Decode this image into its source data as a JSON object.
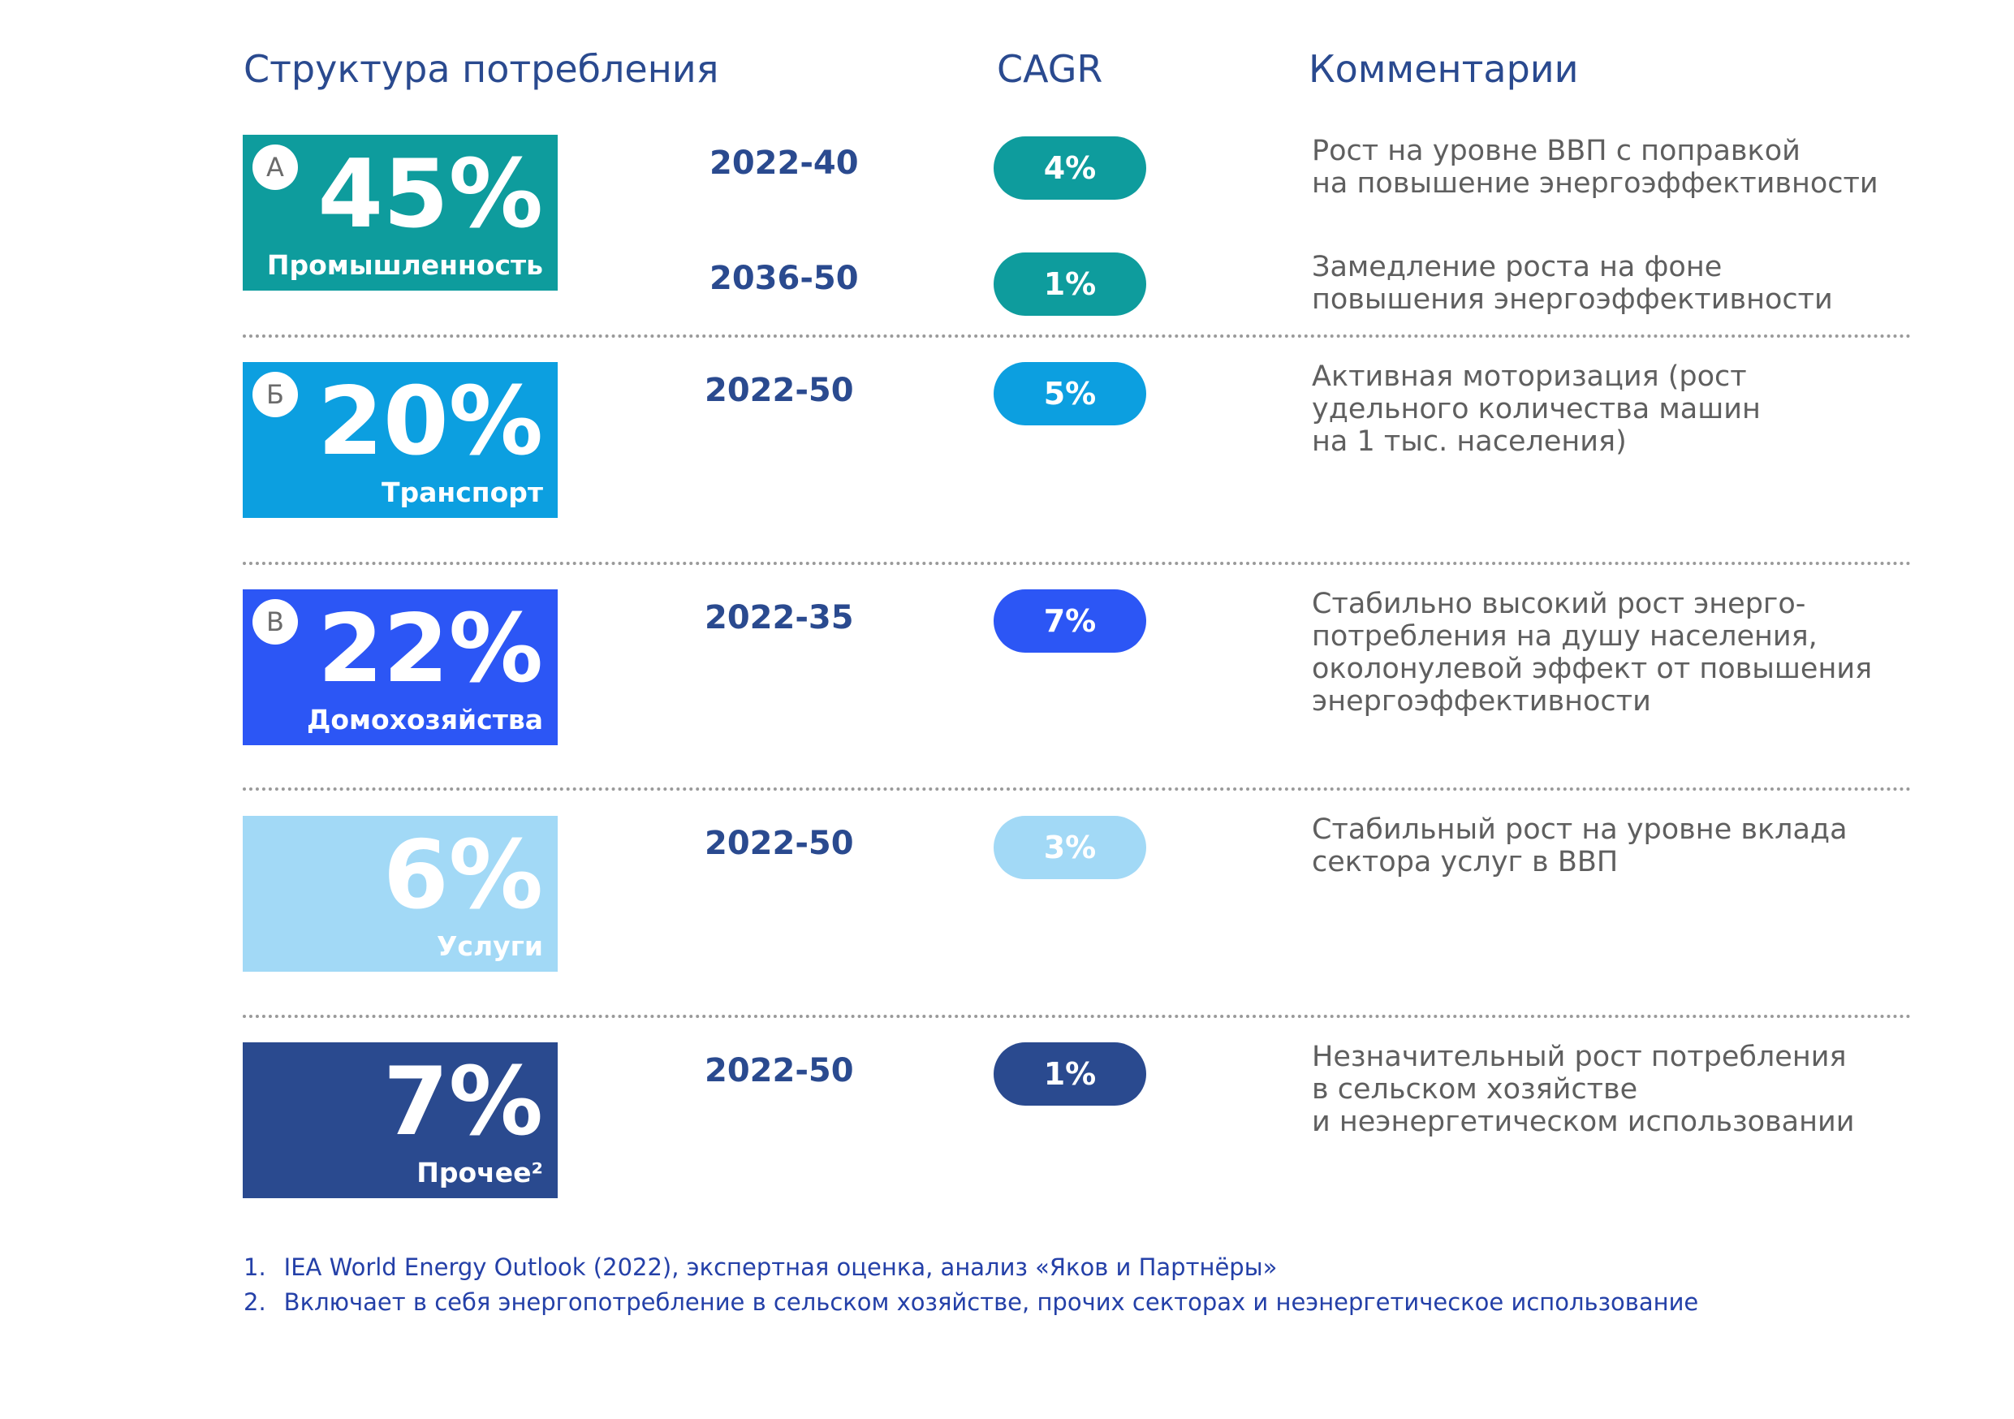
{
  "headers": {
    "structure": "Структура потребления",
    "cagr": "CAGR",
    "comments": "Комментарии"
  },
  "sectors": [
    {
      "badge": "А",
      "percent": "45%",
      "label": "Промышленность",
      "color": "#0e9c9d",
      "rows": [
        {
          "period": "2022-40",
          "cagr": "4%",
          "comment": "Рост на уровне ВВП с поправкой\nна повышение энергоэффективности"
        },
        {
          "period": "2036-50",
          "cagr": "1%",
          "comment": "Замедление роста на фоне\nповышения энергоэффективности"
        }
      ]
    },
    {
      "badge": "Б",
      "percent": "20%",
      "label": "Транспорт",
      "color": "#0c9fe0",
      "rows": [
        {
          "period": "2022-50",
          "cagr": "5%",
          "comment": "Активная моторизация (рост\nудельного количества машин\nна 1 тыс. населения)"
        }
      ]
    },
    {
      "badge": "В",
      "percent": "22%",
      "label": "Домохозяйства",
      "color": "#2c56f5",
      "rows": [
        {
          "period": "2022-35",
          "cagr": "7%",
          "comment": "Стабильно высокий рост энерго-\nпотребления на душу населения,\nоколонулевой эффект от повышения\nэнергоэффективности"
        }
      ]
    },
    {
      "badge": "",
      "percent": "6%",
      "label": "Услуги",
      "color": "#a2d9f6",
      "rows": [
        {
          "period": "2022-50",
          "cagr": "3%",
          "comment": "Стабильный рост на уровне вклада\nсектора услуг в ВВП"
        }
      ]
    },
    {
      "badge": "",
      "percent": "7%",
      "label": "Прочее²",
      "color": "#2a4a8f",
      "rows": [
        {
          "period": "2022-50",
          "cagr": "1%",
          "comment": "Незначительный рост потребления\nв сельском хозяйстве\nи неэнергетическом использовании"
        }
      ]
    }
  ],
  "footnotes": [
    {
      "num": "1.",
      "text": "IEA World Energy Outlook (2022), экспертная оценка, анализ «Яков и Партнёры»"
    },
    {
      "num": "2.",
      "text": "Включает в себя энергопотребление в сельском хозяйстве, прочих секторах и неэнергетическое использование"
    }
  ]
}
